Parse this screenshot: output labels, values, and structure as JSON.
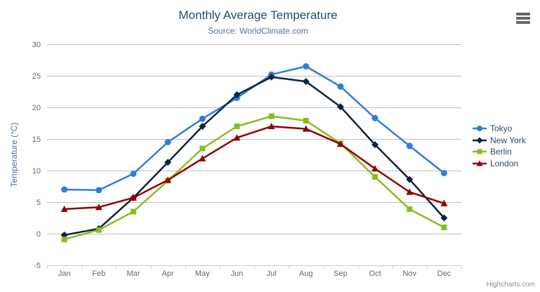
{
  "chart_data": {
    "type": "line",
    "title": "Monthly Average Temperature",
    "subtitle": "Source: WorldClimate.com",
    "xlabel": "",
    "ylabel": "Temperature (°C)",
    "categories": [
      "Jan",
      "Feb",
      "Mar",
      "Apr",
      "May",
      "Jun",
      "Jul",
      "Aug",
      "Sep",
      "Oct",
      "Nov",
      "Dec"
    ],
    "ylim": [
      -5,
      30
    ],
    "yticks": [
      30,
      25,
      20,
      15,
      10,
      5,
      0,
      -5
    ],
    "grid": true,
    "legend_position": "right",
    "series": [
      {
        "name": "Tokyo",
        "color": "#2f7ed8",
        "marker": "circle",
        "values": [
          7.0,
          6.9,
          9.5,
          14.5,
          18.2,
          21.5,
          25.2,
          26.5,
          23.3,
          18.3,
          13.9,
          9.6
        ]
      },
      {
        "name": "New York",
        "color": "#0d233a",
        "marker": "diamond",
        "values": [
          -0.2,
          0.8,
          5.7,
          11.3,
          17.0,
          22.0,
          24.8,
          24.1,
          20.1,
          14.1,
          8.6,
          2.5
        ]
      },
      {
        "name": "Berlin",
        "color": "#8bbc21",
        "marker": "square",
        "values": [
          -0.9,
          0.6,
          3.5,
          8.4,
          13.5,
          17.0,
          18.6,
          17.9,
          14.3,
          9.0,
          3.9,
          1.0
        ]
      },
      {
        "name": "London",
        "color": "#910000",
        "marker": "triangle",
        "values": [
          3.9,
          4.2,
          5.7,
          8.5,
          11.9,
          15.2,
          17.0,
          16.6,
          14.2,
          10.3,
          6.6,
          4.8
        ]
      }
    ],
    "colors": {
      "title": "#274b6d",
      "subtitle": "#4d759e",
      "axis_labels": "#666666",
      "yaxis_title": "#4572a7",
      "gridline": "#c0c0c0",
      "axis_line": "#c0d0e0"
    }
  },
  "toolbar": {
    "menu_icon": "hamburger-menu"
  },
  "credits": {
    "label": "Highcharts.com"
  }
}
